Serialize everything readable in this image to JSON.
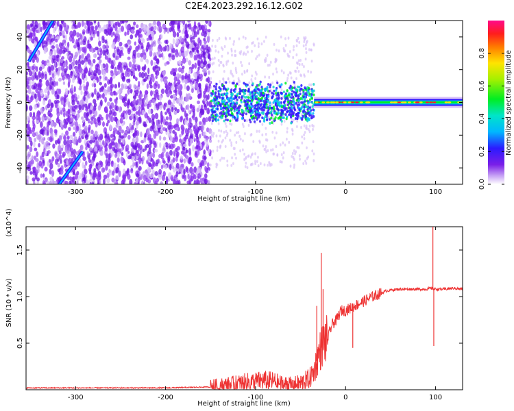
{
  "title": "C2E4.2023.292.16.12.G02",
  "colors": {
    "snr_line": "#ee3333",
    "frame": "#000000",
    "spectrogram_noise": "#7a1ee8",
    "spectrogram_signal": "#19d4c7"
  },
  "chart_data": [
    {
      "type": "heatmap",
      "xlabel": "Height of straight line (km)",
      "ylabel": "Frequency (Hz)",
      "xlim": [
        -355,
        130
      ],
      "ylim": [
        -50,
        50
      ],
      "xticks": [
        -300,
        -200,
        -100,
        0,
        100
      ],
      "xtick_labels": [
        "-300",
        "-200",
        "-100",
        "0",
        "100"
      ],
      "yticks": [
        -40,
        -20,
        0,
        20,
        40
      ],
      "ytick_labels": [
        "-40",
        "-20",
        "0",
        "20",
        "40"
      ],
      "colorbar": {
        "label": "Normalized spectral amplitude",
        "range": [
          0,
          1
        ],
        "ticks": [
          0.0,
          0.2,
          0.4,
          0.6,
          0.8
        ],
        "tick_labels": [
          "0.0",
          "0.2",
          "0.4",
          "0.6",
          "0.8"
        ],
        "colormap": "rainbow (white → purple → blue → cyan → green → yellow → red → magenta)"
      },
      "features": {
        "noise_region_x": [
          -355,
          -150
        ],
        "transition_region_x": [
          -150,
          -35
        ],
        "carrier_line_x": [
          -35,
          130
        ],
        "carrier_frequency_hz": 0,
        "diagonal_tracks": [
          {
            "x": [
              -352,
              -325
            ],
            "y": [
              25,
              50
            ]
          },
          {
            "x": [
              -318,
              -292
            ],
            "y": [
              -50,
              -30
            ]
          }
        ]
      }
    },
    {
      "type": "line",
      "xlabel": "Height of straight line (km)",
      "ylabel": "SNR (10 * v/v)",
      "y_multiplier_label": "(x10^4)",
      "xlim": [
        -355,
        130
      ],
      "ylim": [
        0,
        1.75
      ],
      "xticks": [
        -300,
        -200,
        -100,
        0,
        100
      ],
      "xtick_labels": [
        "-300",
        "-200",
        "-100",
        "0",
        "100"
      ],
      "yticks": [
        0.5,
        1.0,
        1.5
      ],
      "ytick_labels": [
        "0.5",
        "1.0",
        "1.5"
      ],
      "series": [
        {
          "x": [
            -355,
            -300,
            -250,
            -200,
            -150,
            -130,
            -110,
            -100,
            -90,
            -80,
            -70,
            -60,
            -50,
            -40,
            -35,
            -30,
            -25,
            -20,
            -15,
            -10,
            -5,
            0,
            10,
            20,
            30,
            40,
            45,
            50,
            60,
            70,
            80,
            90,
            95,
            100,
            110,
            120,
            130
          ],
          "y": [
            0.02,
            0.02,
            0.02,
            0.02,
            0.03,
            0.05,
            0.08,
            0.09,
            0.1,
            0.09,
            0.06,
            0.05,
            0.07,
            0.12,
            0.2,
            0.38,
            0.5,
            0.55,
            0.7,
            0.75,
            0.85,
            0.85,
            0.9,
            0.95,
            1.0,
            1.04,
            1.06,
            1.07,
            1.08,
            1.08,
            1.08,
            1.08,
            1.09,
            1.08,
            1.08,
            1.09,
            1.08
          ]
        }
      ],
      "spikes": [
        {
          "x": -27,
          "y": 1.47
        },
        {
          "x": -25,
          "y": 1.08
        },
        {
          "x": -32,
          "y": 0.9
        },
        {
          "x": 97,
          "y": 1.75
        },
        {
          "x": 98,
          "y": 0.47
        },
        {
          "x": 8,
          "y": 0.45
        }
      ]
    }
  ]
}
